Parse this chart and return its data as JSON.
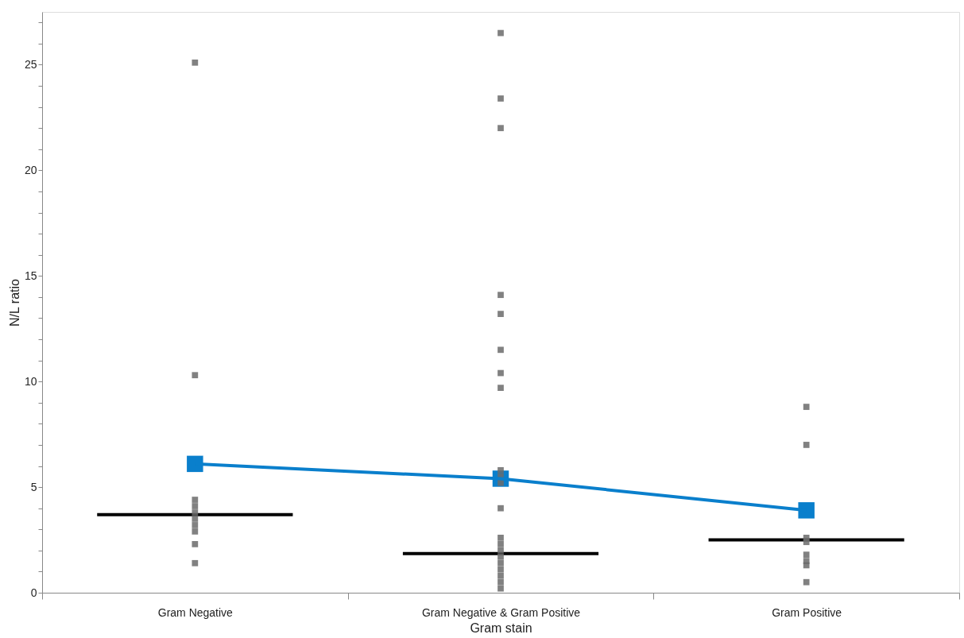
{
  "chart_data": {
    "type": "scatter",
    "xlabel": "Gram stain",
    "ylabel": "N/L ratio",
    "categories": [
      "Gram Negative",
      "Gram Negative & Gram Positive",
      "Gram Positive"
    ],
    "ylim": [
      0,
      27.5
    ],
    "yticks": [
      0,
      {
        "value": 1,
        "label": null
      },
      {
        "value": 2,
        "label": null
      },
      {
        "value": 3,
        "label": null
      },
      {
        "value": 4,
        "label": null
      },
      5,
      {
        "value": 6,
        "label": null
      },
      {
        "value": 7,
        "label": null
      },
      {
        "value": 8,
        "label": null
      },
      {
        "value": 9,
        "label": null
      },
      10,
      {
        "value": 11,
        "label": null
      },
      {
        "value": 12,
        "label": null
      },
      {
        "value": 13,
        "label": null
      },
      {
        "value": 14,
        "label": null
      },
      15,
      {
        "value": 16,
        "label": null
      },
      {
        "value": 17,
        "label": null
      },
      {
        "value": 18,
        "label": null
      },
      {
        "value": 19,
        "label": null
      },
      20,
      {
        "value": 21,
        "label": null
      },
      {
        "value": 22,
        "label": null
      },
      {
        "value": 23,
        "label": null
      },
      {
        "value": 24,
        "label": null
      },
      25,
      {
        "value": 26,
        "label": null
      },
      {
        "value": 27,
        "label": null
      }
    ],
    "grid": false,
    "ref_lines": [
      {
        "axis": "y",
        "value": 3.7,
        "color": "#000000",
        "line_style": "solid"
      },
      {
        "axis": "y",
        "value": 1.85,
        "color": "#000000",
        "line_style": "solid"
      },
      {
        "axis": "y",
        "value": 2.5,
        "color": "#000000",
        "line_style": "solid"
      }
    ],
    "series": [
      {
        "type": "scatter",
        "marker": "square",
        "color": "#6b6b6b",
        "x": [
          "Gram Negative",
          "Gram Negative",
          "Gram Negative",
          "Gram Negative",
          "Gram Negative",
          "Gram Negative",
          "Gram Negative",
          "Gram Negative",
          "Gram Negative",
          "Gram Negative",
          "Gram Negative & Gram Positive",
          "Gram Negative & Gram Positive",
          "Gram Negative & Gram Positive",
          "Gram Negative & Gram Positive",
          "Gram Negative & Gram Positive",
          "Gram Negative & Gram Positive",
          "Gram Negative & Gram Positive",
          "Gram Negative & Gram Positive",
          "Gram Negative & Gram Positive",
          "Gram Negative & Gram Positive",
          "Gram Negative & Gram Positive",
          "Gram Negative & Gram Positive",
          "Gram Negative & Gram Positive",
          "Gram Negative & Gram Positive",
          "Gram Negative & Gram Positive",
          "Gram Negative & Gram Positive",
          "Gram Negative & Gram Positive",
          "Gram Negative & Gram Positive",
          "Gram Negative & Gram Positive",
          "Gram Negative & Gram Positive",
          "Gram Negative & Gram Positive",
          "Gram Positive",
          "Gram Positive",
          "Gram Positive",
          "Gram Positive",
          "Gram Positive",
          "Gram Positive",
          "Gram Positive",
          "Gram Positive"
        ],
        "values": [
          25.1,
          10.3,
          4.4,
          4.1,
          3.8,
          3.5,
          3.2,
          2.9,
          2.3,
          1.4,
          26.5,
          23.4,
          22.0,
          14.1,
          13.2,
          11.5,
          10.4,
          9.7,
          5.8,
          5.5,
          5.2,
          4.0,
          2.6,
          2.3,
          2.0,
          1.7,
          1.4,
          1.1,
          0.8,
          0.5,
          0.2,
          8.8,
          7.0,
          2.6,
          2.4,
          1.8,
          1.5,
          1.3,
          0.5
        ]
      },
      {
        "type": "line",
        "marker": "square",
        "line_style": "solid",
        "color": "#0a7fcc",
        "values": [
          6.1,
          5.4,
          3.9
        ]
      }
    ]
  }
}
